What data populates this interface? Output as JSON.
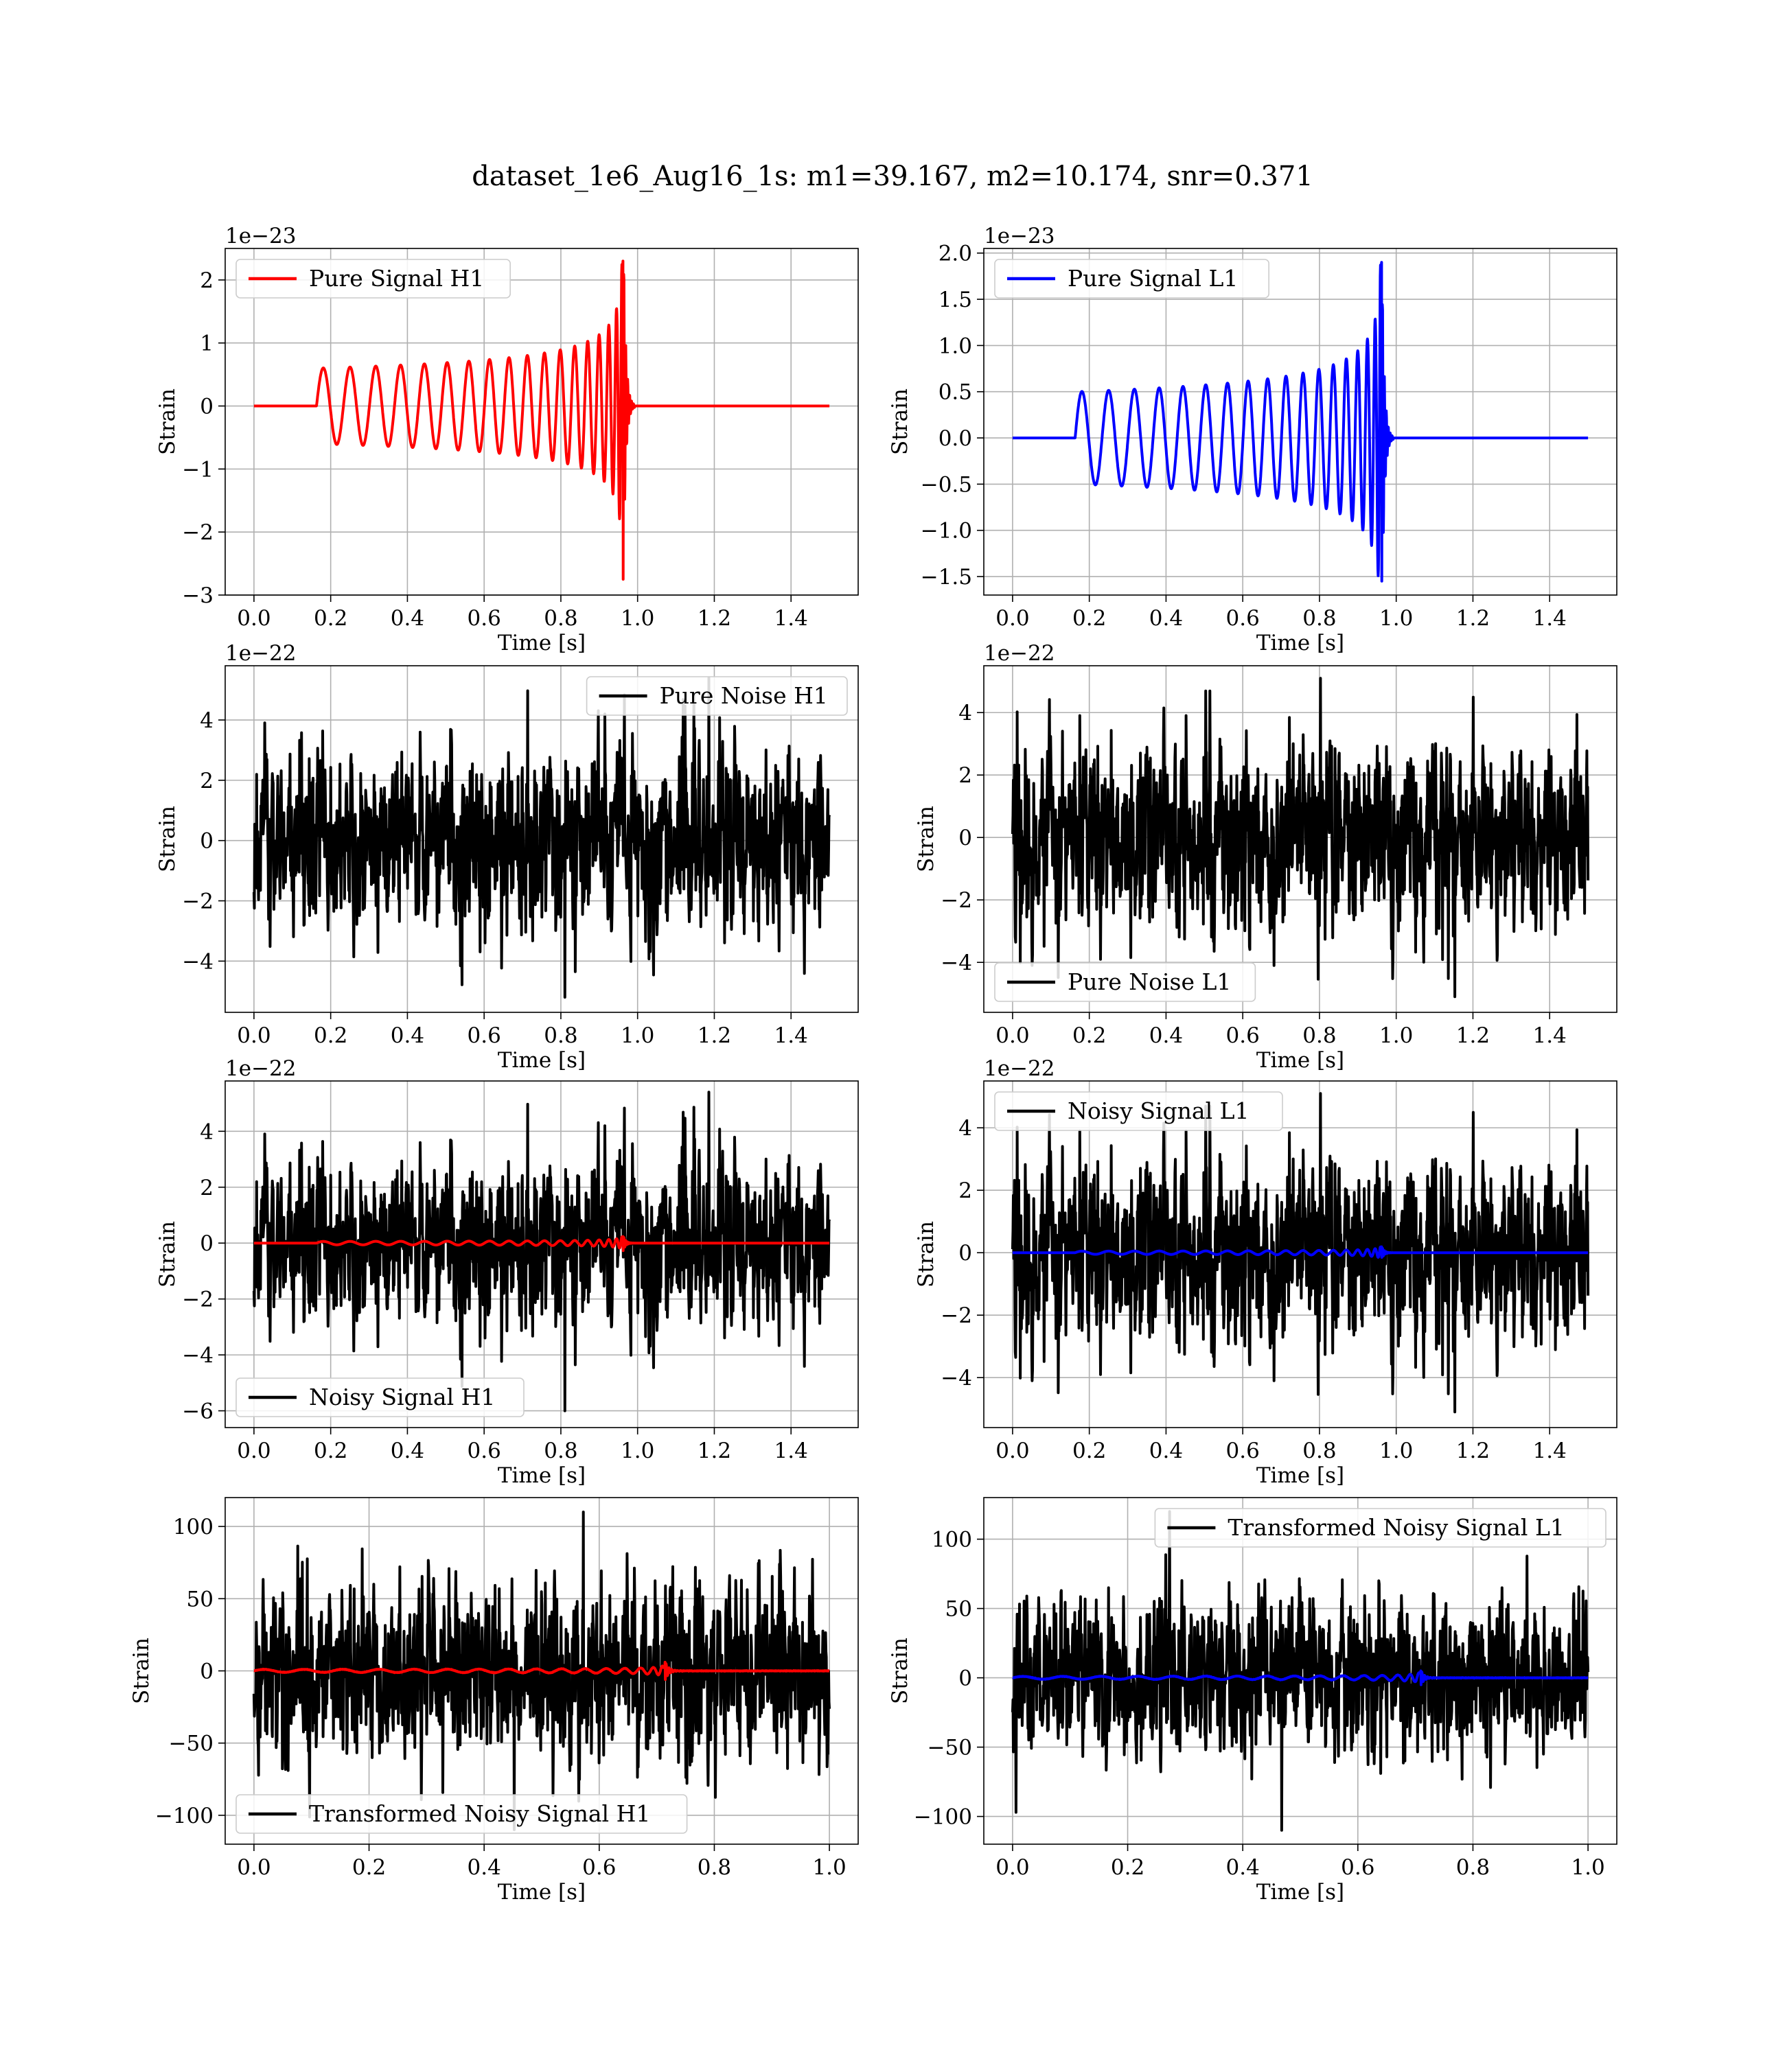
{
  "figure": {
    "suptitle": "dataset_1e6_Aug16_1s: m1=39.167, m2=10.174, snr=0.371",
    "colors": {
      "h1_signal": "#ff0000",
      "l1_signal": "#0000ff",
      "noise": "#000000",
      "grid": "#b0b0b0"
    }
  },
  "chart_data": [
    {
      "type": "line",
      "panel": "pure-signal-h1",
      "xlabel": "Time [s]",
      "ylabel": "Strain",
      "offset_text": "1e−23",
      "xlim": [
        -0.075,
        1.575
      ],
      "ylim": [
        -3,
        2.5
      ],
      "xticks": [
        0.0,
        0.2,
        0.4,
        0.6,
        0.8,
        1.0,
        1.2,
        1.4
      ],
      "xtick_labels": [
        "0.0",
        "0.2",
        "0.4",
        "0.6",
        "0.8",
        "1.0",
        "1.2",
        "1.4"
      ],
      "yticks": [
        -3,
        -2,
        -1,
        0,
        1,
        2
      ],
      "ytick_labels": [
        "−3",
        "−2",
        "−1",
        "0",
        "1",
        "2"
      ],
      "legend": {
        "position": "upper left",
        "entries": [
          {
            "label": "Pure Signal H1",
            "color": "#ff0000"
          }
        ]
      },
      "series": [
        {
          "name": "Pure Signal H1",
          "kind": "chirp",
          "color": "#ff0000",
          "x_range": [
            0,
            1.5
          ],
          "t_start": 0.163,
          "t_merge": 0.963,
          "start_amplitude": 0.6,
          "peak_max": 2.3,
          "peak_min": -2.75,
          "duration": 1.5,
          "noise_amplitude": 0,
          "seed": 11
        }
      ]
    },
    {
      "type": "line",
      "panel": "pure-signal-l1",
      "xlabel": "Time [s]",
      "ylabel": "Strain",
      "offset_text": "1e−23",
      "xlim": [
        -0.075,
        1.575
      ],
      "ylim": [
        -1.7,
        2.05
      ],
      "xticks": [
        0.0,
        0.2,
        0.4,
        0.6,
        0.8,
        1.0,
        1.2,
        1.4
      ],
      "xtick_labels": [
        "0.0",
        "0.2",
        "0.4",
        "0.6",
        "0.8",
        "1.0",
        "1.2",
        "1.4"
      ],
      "yticks": [
        -1.5,
        -1.0,
        -0.5,
        0.0,
        0.5,
        1.0,
        1.5,
        2.0
      ],
      "ytick_labels": [
        "−1.5",
        "−1.0",
        "−0.5",
        "0.0",
        "0.5",
        "1.0",
        "1.5",
        "2.0"
      ],
      "legend": {
        "position": "upper left",
        "entries": [
          {
            "label": "Pure Signal L1",
            "color": "#0000ff"
          }
        ]
      },
      "series": [
        {
          "name": "Pure Signal L1",
          "kind": "chirp",
          "color": "#0000ff",
          "x_range": [
            0,
            1.5
          ],
          "t_start": 0.163,
          "t_merge": 0.963,
          "start_amplitude": 0.5,
          "peak_max": 1.9,
          "peak_min": -1.55,
          "duration": 1.5,
          "noise_amplitude": 0,
          "seed": 12
        }
      ]
    },
    {
      "type": "line",
      "panel": "pure-noise-h1",
      "xlabel": "Time [s]",
      "ylabel": "Strain",
      "offset_text": "1e−22",
      "xlim": [
        -0.075,
        1.575
      ],
      "ylim": [
        -5.7,
        5.8
      ],
      "xticks": [
        0.0,
        0.2,
        0.4,
        0.6,
        0.8,
        1.0,
        1.2,
        1.4
      ],
      "xtick_labels": [
        "0.0",
        "0.2",
        "0.4",
        "0.6",
        "0.8",
        "1.0",
        "1.2",
        "1.4"
      ],
      "yticks": [
        -4,
        -2,
        0,
        2,
        4
      ],
      "ytick_labels": [
        "−4",
        "−2",
        "0",
        "2",
        "4"
      ],
      "legend": {
        "position": "upper right",
        "entries": [
          {
            "label": "Pure Noise H1",
            "color": "#000000"
          }
        ]
      },
      "series": [
        {
          "name": "Pure Noise H1",
          "kind": "noise",
          "color": "#000000",
          "x_range": [
            0,
            1.5
          ],
          "noise_amplitude": 1.4,
          "peak_max": 5.4,
          "peak_min": -5.2,
          "seed": 21
        }
      ]
    },
    {
      "type": "line",
      "panel": "pure-noise-l1",
      "xlabel": "Time [s]",
      "ylabel": "Strain",
      "offset_text": "1e−22",
      "xlim": [
        -0.075,
        1.575
      ],
      "ylim": [
        -5.6,
        5.5
      ],
      "xticks": [
        0.0,
        0.2,
        0.4,
        0.6,
        0.8,
        1.0,
        1.2,
        1.4
      ],
      "xtick_labels": [
        "0.0",
        "0.2",
        "0.4",
        "0.6",
        "0.8",
        "1.0",
        "1.2",
        "1.4"
      ],
      "yticks": [
        -4,
        -2,
        0,
        2,
        4
      ],
      "ytick_labels": [
        "−4",
        "−2",
        "0",
        "2",
        "4"
      ],
      "legend": {
        "position": "lower left",
        "entries": [
          {
            "label": "Pure Noise L1",
            "color": "#000000"
          }
        ]
      },
      "series": [
        {
          "name": "Pure Noise L1",
          "kind": "noise",
          "color": "#000000",
          "x_range": [
            0,
            1.5
          ],
          "noise_amplitude": 1.4,
          "peak_max": 5.1,
          "peak_min": -5.1,
          "seed": 22
        }
      ]
    },
    {
      "type": "line",
      "panel": "noisy-signal-h1",
      "xlabel": "Time [s]",
      "ylabel": "Strain",
      "offset_text": "1e−22",
      "xlim": [
        -0.075,
        1.575
      ],
      "ylim": [
        -6.6,
        5.8
      ],
      "xticks": [
        0.0,
        0.2,
        0.4,
        0.6,
        0.8,
        1.0,
        1.2,
        1.4
      ],
      "xtick_labels": [
        "0.0",
        "0.2",
        "0.4",
        "0.6",
        "0.8",
        "1.0",
        "1.2",
        "1.4"
      ],
      "yticks": [
        -6,
        -4,
        -2,
        0,
        2,
        4
      ],
      "ytick_labels": [
        "−6",
        "−4",
        "−2",
        "0",
        "2",
        "4"
      ],
      "legend": {
        "position": "lower left",
        "entries": [
          {
            "label": "Noisy Signal H1",
            "color": "#000000"
          }
        ]
      },
      "series": [
        {
          "name": "Noisy Signal H1",
          "kind": "noise",
          "color": "#000000",
          "x_range": [
            0,
            1.5
          ],
          "noise_amplitude": 1.4,
          "peak_max": 5.4,
          "peak_min": -6.0,
          "seed": 21
        },
        {
          "kind": "chirp",
          "color": "#ff0000",
          "x_range": [
            0,
            1.5
          ],
          "t_start": 0.163,
          "t_merge": 0.963,
          "start_amplitude": 0.06,
          "peak_max": 0.23,
          "peak_min": -0.27,
          "duration": 1.5,
          "noise_amplitude": 0,
          "seed": 31
        }
      ]
    },
    {
      "type": "line",
      "panel": "noisy-signal-l1",
      "xlabel": "Time [s]",
      "ylabel": "Strain",
      "offset_text": "1e−22",
      "xlim": [
        -0.075,
        1.575
      ],
      "ylim": [
        -5.6,
        5.5
      ],
      "xticks": [
        0.0,
        0.2,
        0.4,
        0.6,
        0.8,
        1.0,
        1.2,
        1.4
      ],
      "xtick_labels": [
        "0.0",
        "0.2",
        "0.4",
        "0.6",
        "0.8",
        "1.0",
        "1.2",
        "1.4"
      ],
      "yticks": [
        -4,
        -2,
        0,
        2,
        4
      ],
      "ytick_labels": [
        "−4",
        "−2",
        "0",
        "2",
        "4"
      ],
      "legend": {
        "position": "upper left",
        "entries": [
          {
            "label": "Noisy Signal L1",
            "color": "#000000"
          }
        ]
      },
      "series": [
        {
          "name": "Noisy Signal L1",
          "kind": "noise",
          "color": "#000000",
          "x_range": [
            0,
            1.5
          ],
          "noise_amplitude": 1.4,
          "peak_max": 5.1,
          "peak_min": -5.1,
          "seed": 22
        },
        {
          "kind": "chirp",
          "color": "#0000ff",
          "x_range": [
            0,
            1.5
          ],
          "t_start": 0.163,
          "t_merge": 0.963,
          "start_amplitude": 0.05,
          "peak_max": 0.19,
          "peak_min": -0.15,
          "duration": 1.5,
          "noise_amplitude": 0,
          "seed": 32
        }
      ]
    },
    {
      "type": "line",
      "panel": "transformed-noisy-signal-h1",
      "xlabel": "Time [s]",
      "ylabel": "Strain",
      "offset_text": "",
      "xlim": [
        -0.05,
        1.05
      ],
      "ylim": [
        -120,
        120
      ],
      "xticks": [
        0.0,
        0.2,
        0.4,
        0.6,
        0.8,
        1.0
      ],
      "xtick_labels": [
        "0.0",
        "0.2",
        "0.4",
        "0.6",
        "0.8",
        "1.0"
      ],
      "yticks": [
        -100,
        -50,
        0,
        50,
        100
      ],
      "ytick_labels": [
        "−100",
        "−50",
        "0",
        "50",
        "100"
      ],
      "legend": {
        "position": "lower left",
        "entries": [
          {
            "label": "Transformed Noisy Signal H1",
            "color": "#000000"
          }
        ]
      },
      "series": [
        {
          "name": "Transformed Noisy Signal H1",
          "kind": "noise",
          "color": "#000000",
          "x_range": [
            0,
            1.0
          ],
          "noise_amplitude": 28,
          "peak_max": 110,
          "peak_min": -110,
          "seed": 41
        },
        {
          "kind": "chirp",
          "color": "#ff0000",
          "x_range": [
            0,
            1.0
          ],
          "t_start": 0.0,
          "t_merge": 0.715,
          "start_amplitude": 1.0,
          "peak_max": 6.0,
          "peak_min": -6.0,
          "duration": 1.0,
          "noise_amplitude": 0.5,
          "seed": 51
        }
      ]
    },
    {
      "type": "line",
      "panel": "transformed-noisy-signal-l1",
      "xlabel": "Time [s]",
      "ylabel": "Strain",
      "offset_text": "",
      "xlim": [
        -0.05,
        1.05
      ],
      "ylim": [
        -120,
        130
      ],
      "xticks": [
        0.0,
        0.2,
        0.4,
        0.6,
        0.8,
        1.0
      ],
      "xtick_labels": [
        "0.0",
        "0.2",
        "0.4",
        "0.6",
        "0.8",
        "1.0"
      ],
      "yticks": [
        -100,
        -50,
        0,
        50,
        100
      ],
      "ytick_labels": [
        "−100",
        "−50",
        "0",
        "50",
        "100"
      ],
      "legend": {
        "position": "upper right",
        "entries": [
          {
            "label": "Transformed Noisy Signal L1",
            "color": "#000000"
          }
        ]
      },
      "series": [
        {
          "name": "Transformed Noisy Signal L1",
          "kind": "noise",
          "color": "#000000",
          "x_range": [
            0,
            1.0
          ],
          "noise_amplitude": 26,
          "peak_max": 120,
          "peak_min": -110,
          "seed": 42
        },
        {
          "kind": "chirp",
          "color": "#0000ff",
          "x_range": [
            0,
            1.0
          ],
          "t_start": 0.0,
          "t_merge": 0.71,
          "start_amplitude": 1.0,
          "peak_max": 5.0,
          "peak_min": -5.0,
          "duration": 1.0,
          "noise_amplitude": 0.5,
          "seed": 52
        }
      ]
    }
  ]
}
